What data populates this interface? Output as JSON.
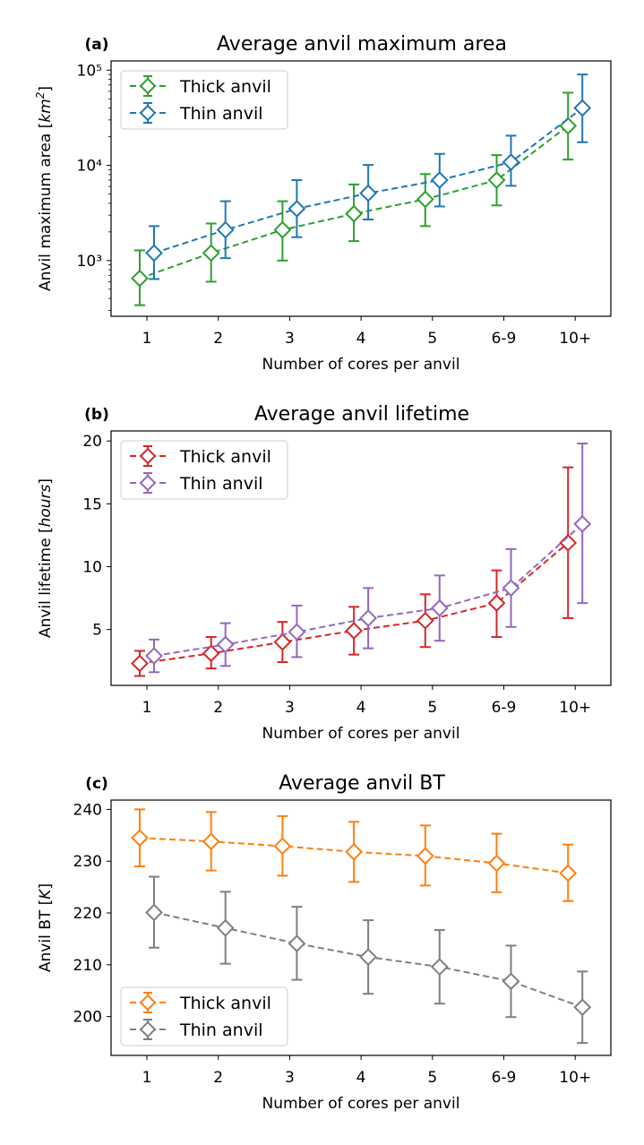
{
  "chart_data": [
    {
      "type": "line",
      "panel_label": "(a)",
      "title": "Average anvil maximum area",
      "xlabel": "Number of cores per anvil",
      "ylabel": "Anvil maximum area [km²]",
      "yscale": "log",
      "ylim": [
        260,
        125000
      ],
      "yticks": [
        1000,
        10000,
        100000
      ],
      "ytick_labels": [
        "10³",
        "10⁴",
        "10⁵"
      ],
      "categories": [
        "1",
        "2",
        "3",
        "4",
        "5",
        "6-9",
        "10+"
      ],
      "legend_loc": "upper-left",
      "series": [
        {
          "name": "Thick anvil",
          "color": "#2ca02c",
          "marker": "diamond-open",
          "linestyle": "dashed",
          "values": [
            650,
            1200,
            2100,
            3100,
            4400,
            7000,
            26000
          ],
          "err_low": [
            340,
            600,
            1000,
            1600,
            2300,
            3800,
            11500
          ],
          "err_high": [
            1280,
            2450,
            4200,
            6300,
            8100,
            12800,
            58000
          ]
        },
        {
          "name": "Thin anvil",
          "color": "#1f77b4",
          "marker": "diamond-open",
          "linestyle": "dashed",
          "values": [
            1200,
            2100,
            3500,
            5100,
            7000,
            10800,
            40000
          ],
          "err_low": [
            640,
            1060,
            1760,
            2700,
            3700,
            6100,
            17500
          ],
          "err_high": [
            2300,
            4200,
            7000,
            10100,
            13200,
            20500,
            90000
          ]
        }
      ]
    },
    {
      "type": "line",
      "panel_label": "(b)",
      "title": "Average anvil lifetime",
      "xlabel": "Number of cores per anvil",
      "ylabel": "Anvil lifetime [hours]",
      "yscale": "linear",
      "ylim": [
        0.55,
        20.8
      ],
      "yticks": [
        5,
        10,
        15,
        20
      ],
      "ytick_labels": [
        "5",
        "10",
        "15",
        "20"
      ],
      "categories": [
        "1",
        "2",
        "3",
        "4",
        "5",
        "6-9",
        "10+"
      ],
      "legend_loc": "upper-left",
      "series": [
        {
          "name": "Thick anvil",
          "color": "#d62728",
          "marker": "diamond-open",
          "linestyle": "dashed",
          "values": [
            2.3,
            3.1,
            4.0,
            4.9,
            5.7,
            7.1,
            11.9
          ],
          "err_low": [
            1.3,
            1.9,
            2.4,
            3.0,
            3.6,
            4.4,
            5.9
          ],
          "err_high": [
            3.3,
            4.4,
            5.6,
            6.8,
            7.8,
            9.7,
            17.9
          ]
        },
        {
          "name": "Thin anvil",
          "color": "#9467bd",
          "marker": "diamond-open",
          "linestyle": "dashed",
          "values": [
            2.9,
            3.8,
            4.8,
            5.9,
            6.7,
            8.3,
            13.4
          ],
          "err_low": [
            1.6,
            2.1,
            2.8,
            3.5,
            4.1,
            5.2,
            7.1
          ],
          "err_high": [
            4.2,
            5.5,
            6.9,
            8.3,
            9.3,
            11.4,
            19.8
          ]
        }
      ]
    },
    {
      "type": "line",
      "panel_label": "(c)",
      "title": "Average anvil BT",
      "xlabel": "Number of cores per anvil",
      "ylabel": "Anvil BT [K]",
      "yscale": "linear",
      "ylim": [
        192.5,
        241.8
      ],
      "yticks": [
        200,
        210,
        220,
        230,
        240
      ],
      "ytick_labels": [
        "200",
        "210",
        "220",
        "230",
        "240"
      ],
      "categories": [
        "1",
        "2",
        "3",
        "4",
        "5",
        "6-9",
        "10+"
      ],
      "legend_loc": "lower-left",
      "series": [
        {
          "name": "Thick anvil",
          "color": "#ff7f0e",
          "marker": "diamond-open",
          "linestyle": "dashed",
          "values": [
            234.5,
            233.8,
            232.9,
            231.8,
            231.0,
            229.6,
            227.7
          ],
          "err_low": [
            229.0,
            228.2,
            227.2,
            226.0,
            225.3,
            224.0,
            222.3
          ],
          "err_high": [
            240.0,
            239.5,
            238.7,
            237.6,
            236.9,
            235.3,
            233.2
          ]
        },
        {
          "name": "Thin anvil",
          "color": "#7f7f7f",
          "marker": "diamond-open",
          "linestyle": "dashed",
          "values": [
            220.1,
            217.1,
            214.1,
            211.5,
            209.6,
            206.8,
            201.8
          ],
          "err_low": [
            213.3,
            210.2,
            207.1,
            204.4,
            202.5,
            199.9,
            194.9
          ],
          "err_high": [
            227.0,
            224.1,
            221.2,
            218.6,
            216.7,
            213.7,
            208.7
          ]
        }
      ]
    }
  ]
}
